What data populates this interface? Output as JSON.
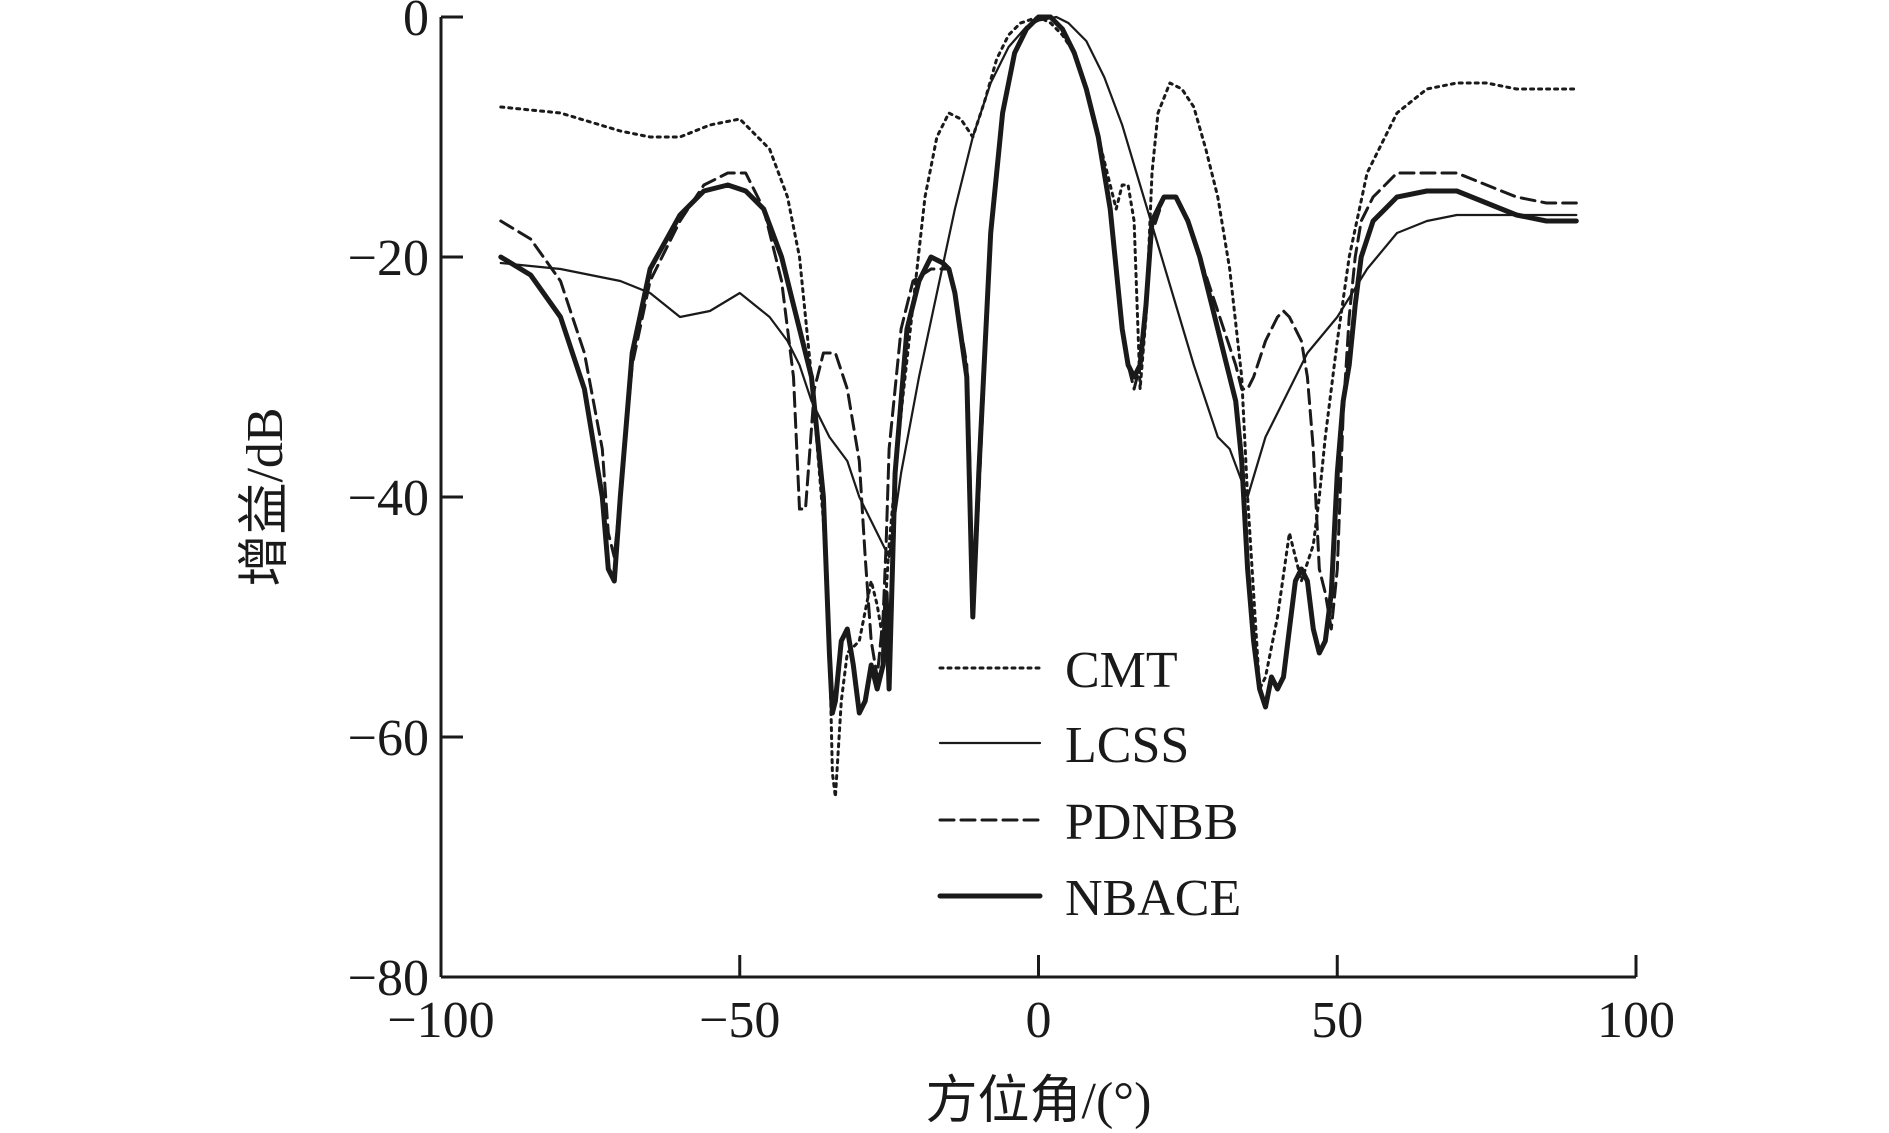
{
  "chart_data": {
    "type": "line",
    "title": "",
    "xlabel": "方位角/(°)",
    "ylabel": "增益/dB",
    "xlim": [
      -100,
      100
    ],
    "ylim": [
      -80,
      0
    ],
    "xticks": [
      -100,
      -50,
      0,
      50,
      100
    ],
    "xtick_labels": [
      "−100",
      "−50",
      "0",
      "50",
      "100"
    ],
    "yticks": [
      0,
      -20,
      -40,
      -60,
      -80
    ],
    "ytick_labels": [
      "0",
      "−20",
      "−40",
      "−60",
      "−80"
    ],
    "grid": false,
    "legend_position": "center-right",
    "series": [
      {
        "name": "CMT",
        "style": "dotted",
        "color": "#1a1a1a",
        "x": [
          -90,
          -80,
          -70,
          -65,
          -60,
          -55,
          -50,
          -45,
          -42,
          -40,
          -38,
          -36,
          -35,
          -34.5,
          -34,
          -33,
          -32,
          -30,
          -28,
          -27,
          -26,
          -25,
          -23,
          -21,
          -19,
          -17,
          -15,
          -13,
          -11,
          -9,
          -7,
          -5,
          -3,
          0,
          2,
          4,
          6,
          8,
          10,
          12,
          13,
          14,
          15,
          16,
          17,
          18,
          19,
          20,
          22,
          24,
          26,
          28,
          30,
          32,
          34,
          35,
          36,
          37,
          38,
          40,
          42,
          44,
          46,
          47,
          48,
          50,
          52,
          55,
          60,
          65,
          70,
          75,
          80,
          85,
          90
        ],
        "y": [
          -7.5,
          -8,
          -9.5,
          -10,
          -10,
          -9,
          -8.5,
          -11,
          -15,
          -20,
          -30,
          -42,
          -52,
          -63,
          -65,
          -57,
          -53,
          -52,
          -47,
          -49,
          -52,
          -44,
          -33,
          -24,
          -15,
          -10,
          -8,
          -8.5,
          -10,
          -7,
          -3.5,
          -1.5,
          -0.5,
          0,
          -0.5,
          -1.5,
          -3,
          -6,
          -10,
          -14,
          -16,
          -14,
          -14,
          -17,
          -31,
          -25,
          -13,
          -8,
          -5.5,
          -6,
          -7.5,
          -11,
          -15,
          -21,
          -30,
          -40,
          -48,
          -56,
          -55,
          -50,
          -43,
          -47,
          -44,
          -40,
          -35,
          -27,
          -20,
          -13,
          -8,
          -6,
          -5.5,
          -5.5,
          -6,
          -6,
          -6
        ]
      },
      {
        "name": "LCSS",
        "style": "solid-thin",
        "color": "#1a1a1a",
        "x": [
          -90,
          -80,
          -70,
          -65,
          -60,
          -55,
          -50,
          -45,
          -42,
          -40,
          -38,
          -35,
          -32,
          -30,
          -28,
          -26,
          -25,
          -23,
          -20,
          -17,
          -14,
          -11,
          -8,
          -5,
          -2,
          0,
          3,
          5,
          8,
          11,
          14,
          17,
          20,
          23,
          26,
          28,
          30,
          32,
          35,
          38,
          41,
          45,
          50,
          55,
          60,
          65,
          70,
          75,
          80,
          85,
          90
        ],
        "y": [
          -20.5,
          -21,
          -22,
          -23,
          -25,
          -24.5,
          -23,
          -25,
          -27,
          -29,
          -32,
          -35,
          -37,
          -40,
          -42,
          -44,
          -45,
          -38,
          -30,
          -23,
          -16,
          -10,
          -5.5,
          -2.5,
          -0.8,
          -0.3,
          0,
          -0.5,
          -2,
          -5,
          -9,
          -14,
          -19,
          -24,
          -29,
          -32,
          -35,
          -36,
          -40,
          -35,
          -32,
          -28,
          -25,
          -21,
          -18,
          -17,
          -16.5,
          -16.5,
          -16.5,
          -16.5,
          -16.5
        ]
      },
      {
        "name": "PDNBB",
        "style": "dashed",
        "color": "#1a1a1a",
        "x": [
          -90,
          -85,
          -80,
          -76,
          -73,
          -72,
          -71,
          -70,
          -68,
          -65,
          -60,
          -56,
          -52,
          -49,
          -46,
          -43,
          -41,
          -40,
          -39,
          -37.5,
          -36,
          -34,
          -32,
          -30,
          -29,
          -28,
          -27,
          -26,
          -25.5,
          -25,
          -23,
          -21,
          -18,
          -16,
          -15,
          -14,
          -12,
          -11.5,
          -11,
          -10,
          -8,
          -6,
          -4,
          -2,
          0,
          2,
          4,
          6,
          8,
          10,
          12,
          13,
          14,
          15,
          16,
          17,
          18,
          19,
          21,
          23,
          25,
          27,
          29,
          31,
          33,
          34,
          35,
          36,
          37,
          38,
          39,
          40,
          41,
          42,
          43,
          44,
          45,
          46,
          47,
          48,
          49,
          50,
          51,
          52,
          53,
          54,
          56,
          58,
          60,
          65,
          70,
          75,
          80,
          85,
          90
        ],
        "y": [
          -17,
          -18.5,
          -22,
          -28,
          -36,
          -43,
          -45,
          -40,
          -29,
          -22,
          -17,
          -14,
          -13,
          -13,
          -16,
          -22,
          -30,
          -41,
          -41,
          -31,
          -28,
          -28,
          -31,
          -37,
          -45,
          -52,
          -55,
          -50,
          -44,
          -36,
          -26,
          -22,
          -21,
          -21,
          -21,
          -23,
          -29,
          -37,
          -50,
          -40,
          -18,
          -8,
          -3,
          -1,
          0,
          0,
          -1,
          -3,
          -6,
          -10,
          -16,
          -21,
          -26,
          -29,
          -31,
          -29,
          -24,
          -18,
          -15,
          -15,
          -17,
          -20,
          -23,
          -26,
          -29,
          -31,
          -31,
          -30,
          -28.5,
          -27,
          -26,
          -25,
          -24.5,
          -25,
          -26,
          -27,
          -30,
          -36,
          -46,
          -48,
          -51,
          -46,
          -33,
          -25,
          -20,
          -17,
          -15,
          -14,
          -13,
          -13,
          -13,
          -14,
          -15,
          -15.5,
          -15.5
        ]
      },
      {
        "name": "NBACE",
        "style": "solid-thick",
        "color": "#1a1a1a",
        "x": [
          -90,
          -85,
          -80,
          -76,
          -73,
          -72,
          -71,
          -70,
          -68,
          -65,
          -60,
          -56,
          -52,
          -49,
          -46,
          -43,
          -41,
          -40,
          -38,
          -36,
          -35,
          -34.5,
          -34,
          -33,
          -32,
          -31,
          -30,
          -29,
          -28,
          -27,
          -26,
          -25.5,
          -25,
          -24,
          -22,
          -20,
          -18,
          -16,
          -15,
          -14,
          -12,
          -11.5,
          -11,
          -10,
          -8,
          -6,
          -4,
          -2,
          0,
          2,
          4,
          6,
          8,
          10,
          12,
          13,
          14,
          15,
          16,
          17,
          18,
          19,
          21,
          23,
          25,
          27,
          29,
          31,
          33,
          34,
          35,
          36,
          37,
          38,
          39,
          40,
          41,
          42,
          43,
          44,
          45,
          46,
          47,
          48,
          49,
          50,
          51,
          52,
          53,
          54,
          56,
          58,
          60,
          65,
          70,
          75,
          80,
          85,
          90
        ],
        "y": [
          -20,
          -21.5,
          -25,
          -31,
          -40,
          -46,
          -47,
          -40,
          -28,
          -21,
          -16.5,
          -14.5,
          -14,
          -14.5,
          -16,
          -20,
          -24,
          -26,
          -30,
          -40,
          -53,
          -58,
          -57,
          -52,
          -51,
          -54,
          -58,
          -57,
          -54,
          -56,
          -54,
          -48,
          -56,
          -38,
          -26,
          -22,
          -20,
          -20.5,
          -21,
          -23,
          -30,
          -40,
          -50,
          -38,
          -18,
          -8,
          -3,
          -1,
          0,
          0,
          -1,
          -3,
          -6,
          -10,
          -16,
          -21,
          -26,
          -29,
          -30,
          -29,
          -24,
          -17,
          -15,
          -15,
          -17,
          -20,
          -24,
          -28,
          -32,
          -37,
          -46,
          -52,
          -56,
          -57.5,
          -55,
          -56,
          -55,
          -51,
          -47,
          -46,
          -47,
          -51,
          -53,
          -52,
          -48,
          -38,
          -32,
          -29,
          -24,
          -20,
          -17,
          -16,
          -15,
          -14.5,
          -14.5,
          -15.5,
          -16.5,
          -17,
          -17
        ]
      }
    ]
  }
}
